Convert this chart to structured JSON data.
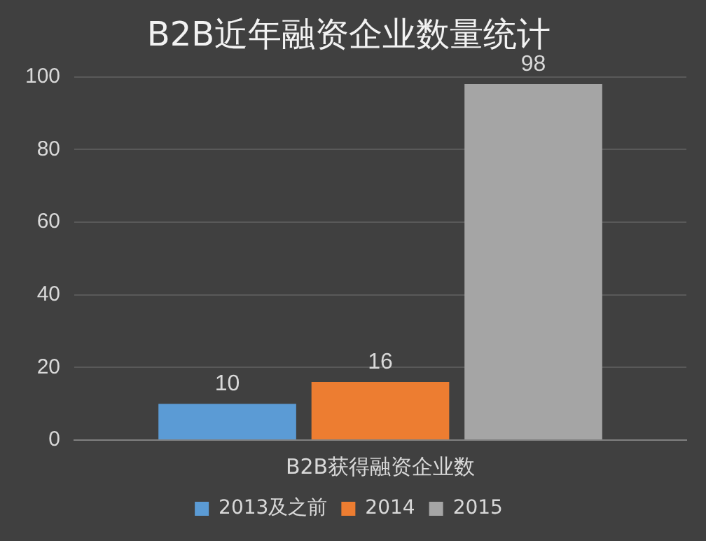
{
  "chart_data": {
    "type": "bar",
    "title": "B2B近年融资企业数量统计",
    "categories": [
      "B2B获得融资企业数"
    ],
    "series": [
      {
        "name": "2013及之前",
        "color": "#5b9bd5",
        "values": [
          10
        ]
      },
      {
        "name": "2014",
        "color": "#ed7d31",
        "values": [
          16
        ]
      },
      {
        "name": "2015",
        "color": "#a5a5a5",
        "values": [
          98
        ]
      }
    ],
    "ylim": [
      0,
      100
    ],
    "yticks": [
      0,
      20,
      40,
      60,
      80,
      100
    ],
    "grid": "y",
    "legend": "bottom",
    "data_labels": true
  }
}
